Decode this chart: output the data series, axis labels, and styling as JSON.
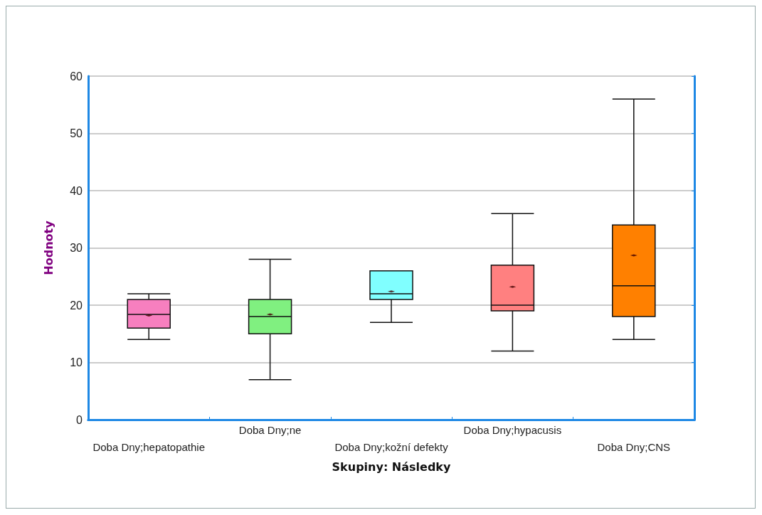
{
  "chart_data": {
    "type": "box",
    "xlabel": "Skupiny: Následky",
    "ylabel": "Hodnoty",
    "categories": [
      "Doba Dny;hepatopathie",
      "Doba Dny;ne",
      "Doba Dny;kožní defekty",
      "Doba Dny;hypacusis",
      "Doba Dny;CNS"
    ],
    "colors": [
      "#f77fbf",
      "#80f080",
      "#80ffff",
      "#ff8080",
      "#ff8000"
    ],
    "boxes": [
      {
        "low": 14,
        "q1": 16,
        "median": 18.4,
        "q3": 21,
        "high": 22,
        "mean": 18.2
      },
      {
        "low": 7,
        "q1": 15,
        "median": 18,
        "q3": 21,
        "high": 28,
        "mean": 18.4
      },
      {
        "low": 17,
        "q1": 21,
        "median": 22,
        "q3": 26,
        "high": 26,
        "mean": 22.4
      },
      {
        "low": 12,
        "q1": 19,
        "median": 20,
        "q3": 27,
        "high": 36,
        "mean": 23.2
      },
      {
        "low": 14,
        "q1": 18,
        "median": 23.4,
        "q3": 34,
        "high": 56,
        "mean": 28.7
      }
    ],
    "ylim": [
      0,
      60
    ],
    "yticks": [
      0,
      10,
      20,
      30,
      40,
      50,
      60
    ],
    "grid": "y"
  }
}
